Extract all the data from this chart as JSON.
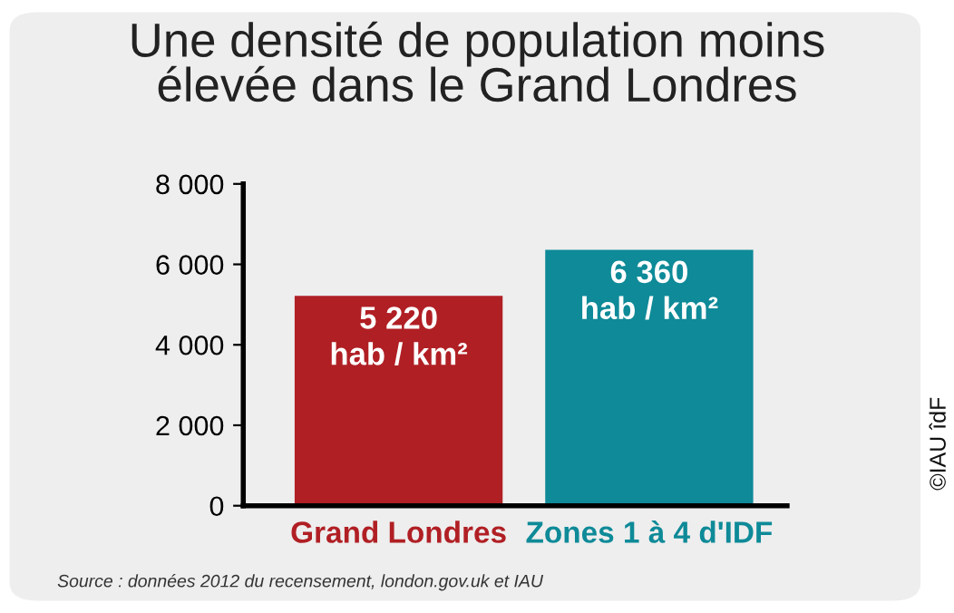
{
  "chart_data": {
    "type": "bar",
    "title": "Une densité de population moins\nélevée dans le Grand Londres",
    "categories": [
      "Grand Londres",
      "Zones 1 à 4 d'IDF"
    ],
    "values": [
      5220,
      6360
    ],
    "colors": [
      "#b01f24",
      "#0e8a98"
    ],
    "value_labels": [
      "5 220\nhab / km²",
      "6 360\nhab / km²"
    ],
    "ylim": [
      0,
      8000
    ],
    "yticks": [
      {
        "value": 0,
        "label": "0"
      },
      {
        "value": 2000,
        "label": "2 000"
      },
      {
        "value": 4000,
        "label": "4 000"
      },
      {
        "value": 6000,
        "label": "6 000"
      },
      {
        "value": 8000,
        "label": "8 000"
      }
    ],
    "grid": false,
    "annotations": [
      "Source : données 2012 du recensement, london.gov.uk et IAU",
      "©IAU îdF"
    ]
  }
}
